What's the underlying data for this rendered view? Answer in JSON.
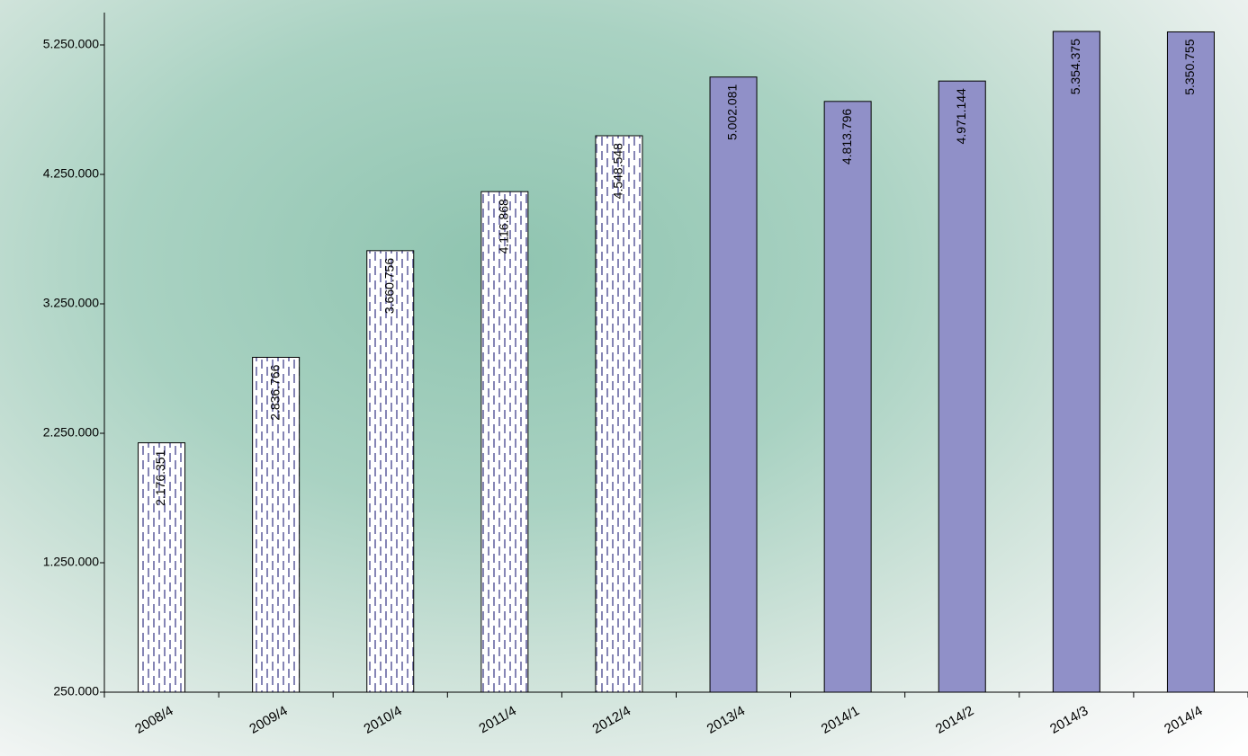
{
  "chart_data": {
    "type": "bar",
    "categories": [
      "2008/4",
      "2009/4",
      "2010/4",
      "2011/4",
      "2012/4",
      "2013/4",
      "2014/1",
      "2014/2",
      "2014/3",
      "2014/4"
    ],
    "values": [
      2176351,
      2836766,
      3660756,
      4116868,
      4548548,
      5002081,
      4813796,
      4971144,
      5354375,
      5350755
    ],
    "value_labels": [
      "2.176.351",
      "2.836.766",
      "3.660.756",
      "4.116.868",
      "4.548.548",
      "5.002.081",
      "4.813.796",
      "4.971.144",
      "5.354.375",
      "5.350.755"
    ],
    "colors": [
      "#ffffff",
      "#ffffff",
      "#ffffff",
      "#ffffff",
      "#ffffff",
      "#9090c8",
      "#9090c8",
      "#9090c8",
      "#9090c8",
      "#9090c8"
    ],
    "hatched": [
      true,
      true,
      true,
      true,
      true,
      false,
      false,
      false,
      false,
      false
    ],
    "hatch_color": "#8585b5",
    "ylim": [
      250000,
      5500000
    ],
    "yticks": [
      {
        "value": 250000,
        "label": "250.000"
      },
      {
        "value": 1250000,
        "label": "1.250.000"
      },
      {
        "value": 2250000,
        "label": "2.250.000"
      },
      {
        "value": 3250000,
        "label": "3.250.000"
      },
      {
        "value": 4250000,
        "label": "4.250.000"
      },
      {
        "value": 5250000,
        "label": "5.250.000"
      }
    ],
    "grid": false
  }
}
